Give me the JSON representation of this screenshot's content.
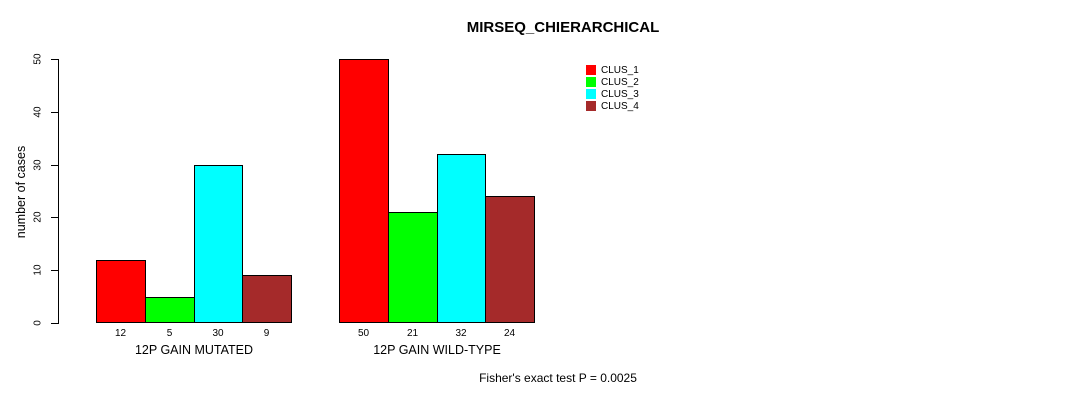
{
  "title": "MIRSEQ_CHIERARCHICAL",
  "footer": "Fisher's exact test P = 0.0025",
  "chart_data": {
    "type": "bar",
    "title": "MIRSEQ_CHIERARCHICAL",
    "xlabel": "",
    "ylabel": "number of cases",
    "ylim": [
      0,
      50
    ],
    "yticks": [
      0,
      10,
      20,
      30,
      40,
      50
    ],
    "grid": false,
    "legend_position": "top-right",
    "bar_border_color": "#000000",
    "background_color": "#ffffff",
    "categories": [
      "12P GAIN MUTATED",
      "12P GAIN WILD-TYPE"
    ],
    "series": [
      {
        "name": "CLUS_1",
        "color": "#ff0000",
        "values": [
          12,
          50
        ]
      },
      {
        "name": "CLUS_2",
        "color": "#00ff00",
        "values": [
          5,
          21
        ]
      },
      {
        "name": "CLUS_3",
        "color": "#00ffff",
        "values": [
          30,
          32
        ]
      },
      {
        "name": "CLUS_4",
        "color": "#a52a2a",
        "values": [
          9,
          24
        ]
      }
    ],
    "value_labels": [
      [
        12,
        5,
        30,
        9
      ],
      [
        50,
        21,
        32,
        24
      ]
    ],
    "annotation": "Fisher's exact test P = 0.0025"
  }
}
